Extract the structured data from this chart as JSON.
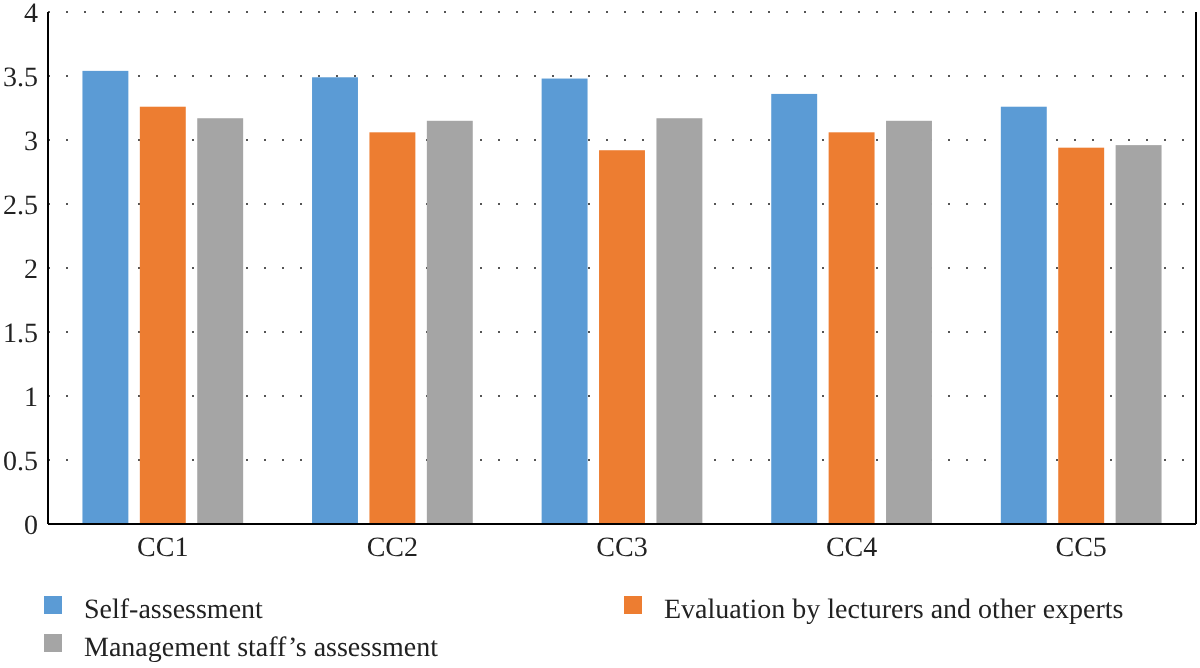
{
  "chart_data": {
    "type": "bar",
    "categories": [
      "CC1",
      "CC2",
      "CC3",
      "CC4",
      "CC5"
    ],
    "series": [
      {
        "name": "Self-assessment",
        "color": "#5b9bd5",
        "values": [
          3.54,
          3.49,
          3.48,
          3.36,
          3.26
        ]
      },
      {
        "name": "Evaluation by lecturers and other experts",
        "color": "#ed7d31",
        "values": [
          3.26,
          3.06,
          2.92,
          3.06,
          2.94
        ]
      },
      {
        "name": "Management staff’s assessment",
        "color": "#a5a5a5",
        "values": [
          3.17,
          3.15,
          3.17,
          3.15,
          2.96
        ]
      }
    ],
    "ylim": [
      0,
      4
    ],
    "yticks": [
      0,
      0.5,
      1,
      1.5,
      2,
      2.5,
      3,
      3.5,
      4
    ],
    "grid": "y",
    "legend": "bottom"
  }
}
